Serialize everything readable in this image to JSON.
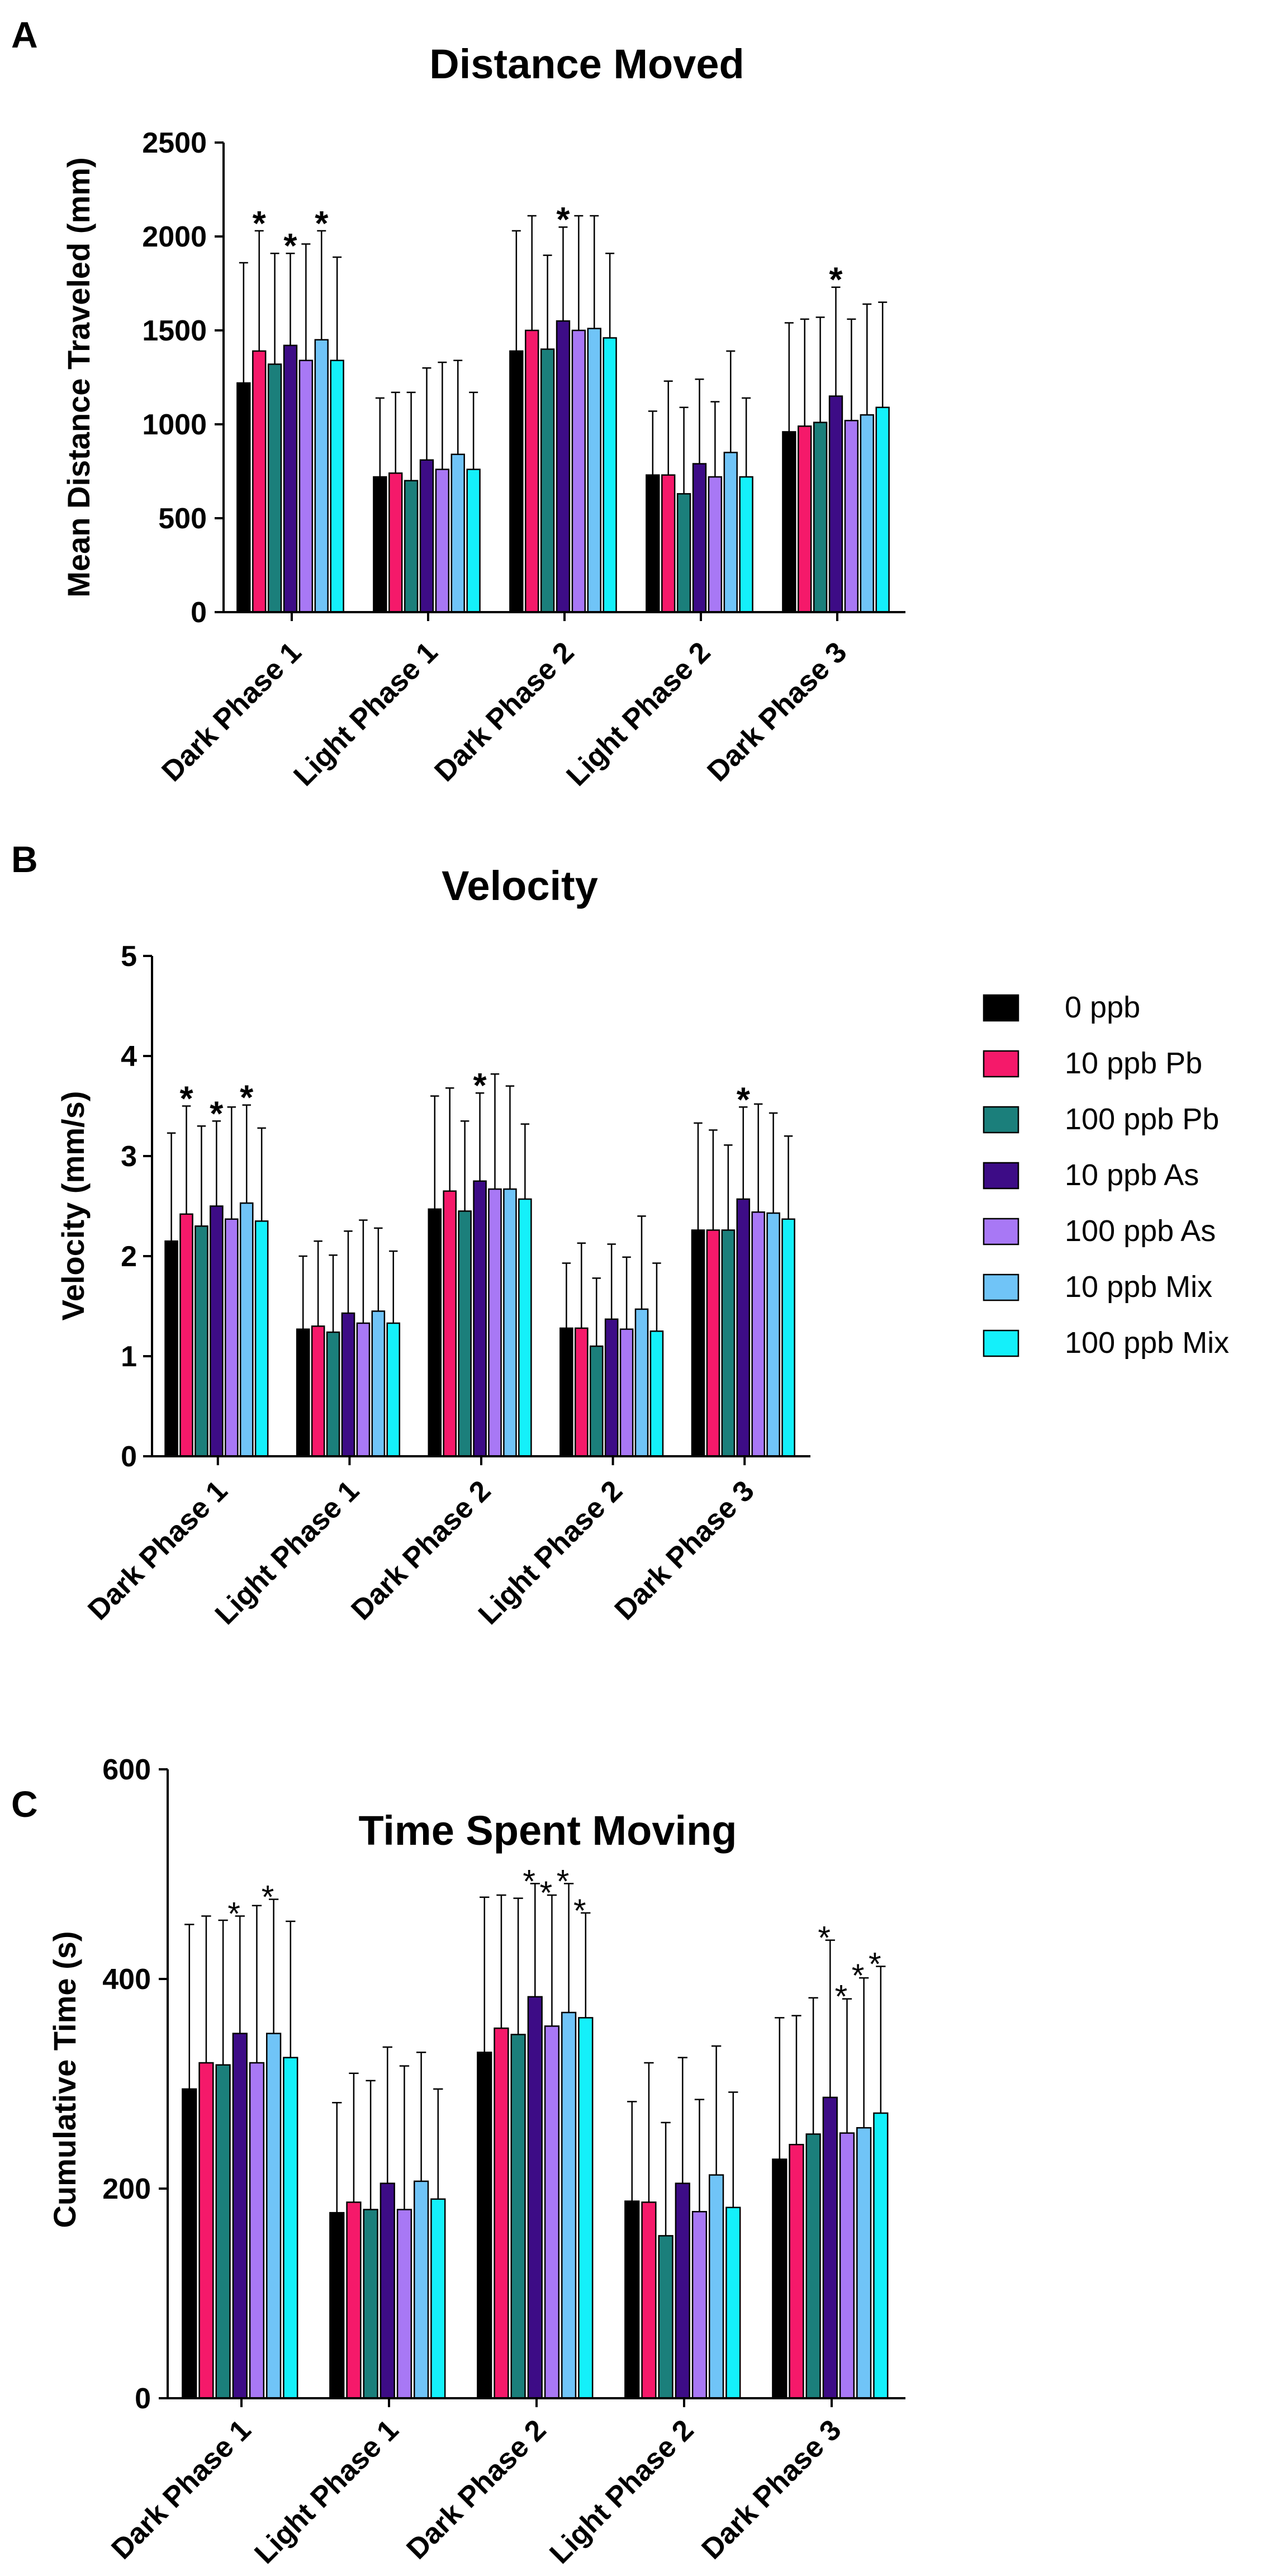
{
  "panels": [
    {
      "letter": "A"
    },
    {
      "letter": "B"
    },
    {
      "letter": "C"
    }
  ],
  "legend": [
    {
      "label": "0 ppb",
      "color": "#000000"
    },
    {
      "label": "10 ppb Pb",
      "color": "#f5196a"
    },
    {
      "label": "100 ppb Pb",
      "color": "#1b7f7b"
    },
    {
      "label": "10 ppb As",
      "color": "#3d0c86"
    },
    {
      "label": "100 ppb As",
      "color": "#a878f5"
    },
    {
      "label": "10 ppb Mix",
      "color": "#70c4f7"
    },
    {
      "label": "100 ppb Mix",
      "color": "#14f0fa"
    }
  ],
  "chart_data": [
    {
      "type": "bar",
      "title": "Distance Moved",
      "ylabel": "Mean Distance Traveled (mm)",
      "xlabel": "",
      "ylim": [
        0,
        2500
      ],
      "yticks": [
        "0",
        "500",
        "1000",
        "1500",
        "2000",
        "2500"
      ],
      "categories": [
        "Dark Phase 1",
        "Light Phase 1",
        "Dark Phase 2",
        "Light Phase 2",
        "Dark Phase 3"
      ],
      "series": [
        {
          "name": "0 ppb",
          "values": [
            1220,
            720,
            1390,
            730,
            960
          ],
          "errors": [
            640,
            420,
            640,
            340,
            580
          ]
        },
        {
          "name": "10 ppb Pb",
          "values": [
            1390,
            740,
            1500,
            730,
            990
          ],
          "errors": [
            640,
            430,
            610,
            500,
            570
          ]
        },
        {
          "name": "100 ppb Pb",
          "values": [
            1320,
            700,
            1400,
            630,
            1010
          ],
          "errors": [
            590,
            470,
            500,
            460,
            560
          ]
        },
        {
          "name": "10 ppb As",
          "values": [
            1420,
            810,
            1550,
            790,
            1150
          ],
          "errors": [
            490,
            490,
            500,
            450,
            580
          ]
        },
        {
          "name": "100 ppb As",
          "values": [
            1340,
            760,
            1500,
            720,
            1020
          ],
          "errors": [
            620,
            570,
            610,
            400,
            540
          ]
        },
        {
          "name": "10 ppb Mix",
          "values": [
            1450,
            840,
            1510,
            850,
            1050
          ],
          "errors": [
            580,
            500,
            600,
            540,
            590
          ]
        },
        {
          "name": "100 ppb Mix",
          "values": [
            1340,
            760,
            1460,
            720,
            1090
          ],
          "errors": [
            550,
            410,
            450,
            420,
            560
          ]
        }
      ],
      "significance": [
        {
          "category": 0,
          "series": 1,
          "text": "*"
        },
        {
          "category": 0,
          "series": 3,
          "text": "*"
        },
        {
          "category": 0,
          "series": 5,
          "text": "*"
        },
        {
          "category": 2,
          "series": 3,
          "text": "*"
        },
        {
          "category": 4,
          "series": 3,
          "text": "*"
        }
      ]
    },
    {
      "type": "bar",
      "title": "Velocity",
      "ylabel": "Velocity (mm/s)",
      "xlabel": "",
      "ylim": [
        0,
        5
      ],
      "yticks": [
        "0",
        "1",
        "2",
        "3",
        "4",
        "5"
      ],
      "categories": [
        "Dark Phase 1",
        "Light Phase 1",
        "Dark Phase 2",
        "Light Phase 2",
        "Dark Phase 3"
      ],
      "series": [
        {
          "name": "0 ppb",
          "values": [
            2.15,
            1.27,
            2.47,
            1.28,
            2.26
          ],
          "errors": [
            1.08,
            0.73,
            1.13,
            0.65,
            1.07
          ]
        },
        {
          "name": "10 ppb Pb",
          "values": [
            2.42,
            1.3,
            2.65,
            1.28,
            2.26
          ],
          "errors": [
            1.08,
            0.85,
            1.03,
            0.85,
            1.0
          ]
        },
        {
          "name": "100 ppb Pb",
          "values": [
            2.3,
            1.24,
            2.45,
            1.1,
            2.26
          ],
          "errors": [
            1.0,
            0.77,
            0.9,
            0.68,
            0.85
          ]
        },
        {
          "name": "10 ppb As",
          "values": [
            2.5,
            1.43,
            2.75,
            1.37,
            2.57
          ],
          "errors": [
            0.85,
            0.82,
            0.88,
            0.75,
            0.92
          ]
        },
        {
          "name": "100 ppb As",
          "values": [
            2.37,
            1.33,
            2.67,
            1.27,
            2.44
          ],
          "errors": [
            1.12,
            1.03,
            1.15,
            0.72,
            1.08
          ]
        },
        {
          "name": "10 ppb Mix",
          "values": [
            2.53,
            1.45,
            2.67,
            1.47,
            2.43
          ],
          "errors": [
            0.98,
            0.83,
            1.03,
            0.93,
            1.0
          ]
        },
        {
          "name": "100 ppb Mix",
          "values": [
            2.35,
            1.33,
            2.57,
            1.25,
            2.37
          ],
          "errors": [
            0.93,
            0.72,
            0.75,
            0.68,
            0.83
          ]
        }
      ],
      "significance": [
        {
          "category": 0,
          "series": 1,
          "text": "*"
        },
        {
          "category": 0,
          "series": 3,
          "text": "*"
        },
        {
          "category": 0,
          "series": 5,
          "text": "*"
        },
        {
          "category": 2,
          "series": 3,
          "text": "*"
        },
        {
          "category": 4,
          "series": 3,
          "text": "*"
        }
      ]
    },
    {
      "type": "bar",
      "title": "Time Spent Moving",
      "ylabel": "Cumulative Time (s)",
      "xlabel": "",
      "ylim": [
        0,
        600
      ],
      "yticks": [
        "0",
        "200",
        "400",
        "600"
      ],
      "categories": [
        "Dark Phase 1",
        "Light Phase 1",
        "Dark Phase 2",
        "Light Phase 2",
        "Dark Phase 3"
      ],
      "series": [
        {
          "name": "0 ppb",
          "values": [
            295,
            177,
            330,
            188,
            228
          ],
          "errors": [
            157,
            105,
            148,
            95,
            135
          ]
        },
        {
          "name": "10 ppb Pb",
          "values": [
            320,
            187,
            353,
            187,
            242
          ],
          "errors": [
            140,
            123,
            127,
            133,
            123
          ]
        },
        {
          "name": "100 ppb Pb",
          "values": [
            318,
            180,
            347,
            155,
            252
          ],
          "errors": [
            138,
            123,
            130,
            108,
            130
          ]
        },
        {
          "name": "10 ppb As",
          "values": [
            348,
            205,
            383,
            205,
            287
          ],
          "errors": [
            112,
            130,
            108,
            120,
            150
          ]
        },
        {
          "name": "100 ppb As",
          "values": [
            320,
            180,
            355,
            178,
            253
          ],
          "errors": [
            150,
            137,
            125,
            107,
            128
          ]
        },
        {
          "name": "10 ppb Mix",
          "values": [
            348,
            207,
            368,
            213,
            258
          ],
          "errors": [
            128,
            123,
            123,
            123,
            143
          ]
        },
        {
          "name": "100 ppb Mix",
          "values": [
            325,
            190,
            363,
            182,
            272
          ],
          "errors": [
            130,
            105,
            100,
            110,
            140
          ]
        }
      ],
      "significance": [
        {
          "category": 0,
          "series": 3,
          "text": "*"
        },
        {
          "category": 0,
          "series": 5,
          "text": "*"
        },
        {
          "category": 2,
          "series": 3,
          "text": "*"
        },
        {
          "category": 2,
          "series": 4,
          "text": "*"
        },
        {
          "category": 2,
          "series": 5,
          "text": "*"
        },
        {
          "category": 2,
          "series": 6,
          "text": "*"
        },
        {
          "category": 4,
          "series": 3,
          "text": "*"
        },
        {
          "category": 4,
          "series": 4,
          "text": "*"
        },
        {
          "category": 4,
          "series": 5,
          "text": "*"
        },
        {
          "category": 4,
          "series": 6,
          "text": "*"
        }
      ]
    }
  ]
}
